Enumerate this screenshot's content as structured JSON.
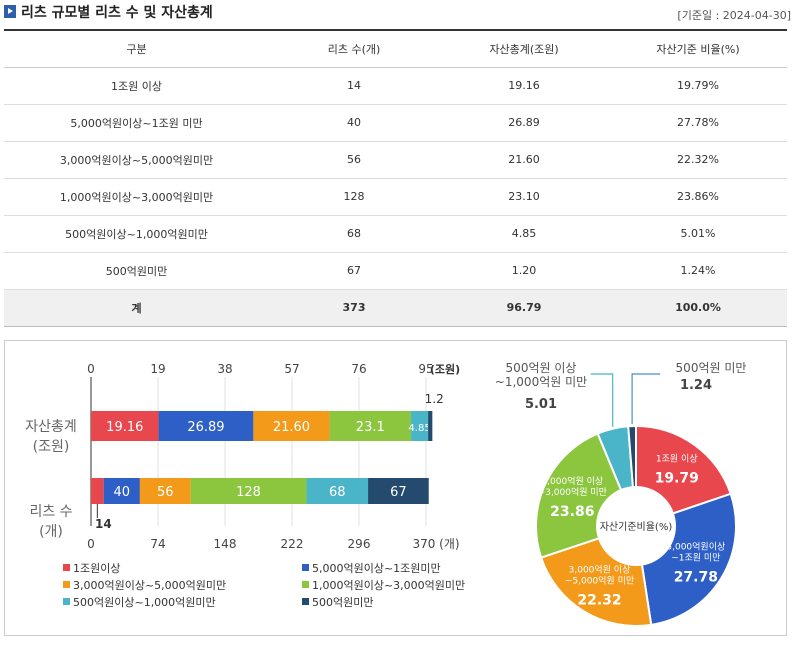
{
  "header": {
    "title": "리츠 규모별 리츠 수 및 자산총계",
    "basis_date": "[기준일 : 2024-04-30]"
  },
  "table": {
    "columns": [
      "구분",
      "리츠 수(개)",
      "자산총계(조원)",
      "자산기준 비율(%)"
    ],
    "rows": [
      [
        "1조원 이상",
        "14",
        "19.16",
        "19.79%"
      ],
      [
        "5,000억원이상~1조원 미만",
        "40",
        "26.89",
        "27.78%"
      ],
      [
        "3,000억원이상~5,000억원미만",
        "56",
        "21.60",
        "22.32%"
      ],
      [
        "1,000억원이상~3,000억원미만",
        "128",
        "23.10",
        "23.86%"
      ],
      [
        "500억원이상~1,000억원미만",
        "68",
        "4.85",
        "5.01%"
      ],
      [
        "500억원미만",
        "67",
        "1.20",
        "1.24%"
      ]
    ],
    "total": [
      "계",
      "373",
      "96.79",
      "100.0%"
    ]
  },
  "chart_data": [
    {
      "type": "bar",
      "orientation": "horizontal-stacked",
      "categories": [
        "자산총계\n(조원)",
        "리츠 수\n(개)"
      ],
      "series": [
        {
          "name": "1조원이상",
          "color": "#e8474d",
          "values": [
            19.16,
            14
          ]
        },
        {
          "name": "5,000억원이상~1조원미만",
          "color": "#2d5fc7",
          "values": [
            26.89,
            40
          ]
        },
        {
          "name": "3,000억원이상~5,000억원미만",
          "color": "#f39a1a",
          "values": [
            21.6,
            56
          ]
        },
        {
          "name": "1,000억원이상~3,000억원미만",
          "color": "#8cc63f",
          "values": [
            23.1,
            128
          ]
        },
        {
          "name": "500억원이상~1,000억원미만",
          "color": "#4ab5c9",
          "values": [
            4.85,
            68
          ]
        },
        {
          "name": "500억원미만",
          "color": "#244a6e",
          "values": [
            1.2,
            67
          ]
        }
      ],
      "top_axis": {
        "ticks": [
          "0",
          "19",
          "38",
          "57",
          "76",
          "95"
        ],
        "unit": "(조원)",
        "max": 95
      },
      "bottom_axis": {
        "ticks": [
          "0",
          "74",
          "148",
          "222",
          "296",
          "370"
        ],
        "unit": "(개)",
        "max": 370
      },
      "asset_labels": [
        "19.16",
        "26.89",
        "21.60",
        "23.1",
        "4.85",
        "1.2"
      ],
      "count_labels": [
        "14",
        "40",
        "56",
        "128",
        "68",
        "67"
      ],
      "legend_placement": "bottom"
    },
    {
      "type": "pie",
      "center_label": "자산기준비율(%)",
      "slices": [
        {
          "label_lines": [
            "1조원 이상"
          ],
          "value": 19.79,
          "value_text": "19.79",
          "color": "#e8474d"
        },
        {
          "label_lines": [
            "5,000억원이상",
            "~1조원 미만"
          ],
          "value": 27.78,
          "value_text": "27.78",
          "color": "#2d5fc7"
        },
        {
          "label_lines": [
            "3,000억원 이상",
            "~5,000억원 미만"
          ],
          "value": 22.32,
          "value_text": "22.32",
          "color": "#f39a1a"
        },
        {
          "label_lines": [
            "1,000억원 이상",
            "~3,000억원 미만"
          ],
          "value": 23.86,
          "value_text": "23.86",
          "color": "#8cc63f"
        },
        {
          "label_lines": [
            "500억원 이상",
            "~1,000억원 미만"
          ],
          "value": 5.01,
          "value_text": "5.01",
          "color": "#4ab5c9"
        },
        {
          "label_lines": [
            "500억원 미만"
          ],
          "value": 1.24,
          "value_text": "1.24",
          "color": "#244a6e"
        }
      ]
    }
  ]
}
